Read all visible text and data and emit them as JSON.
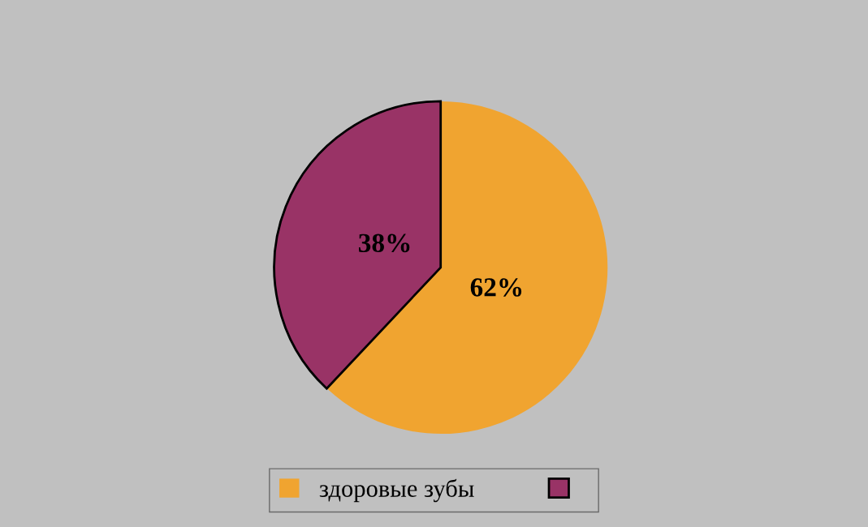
{
  "chart_data": {
    "type": "pie",
    "categories": [
      "здоровые зубы",
      null
    ],
    "values": [
      62,
      38
    ],
    "colors": [
      "#f0a430",
      "#993366"
    ],
    "value_labels": [
      "62%",
      "38%"
    ],
    "legend": "bottom"
  }
}
